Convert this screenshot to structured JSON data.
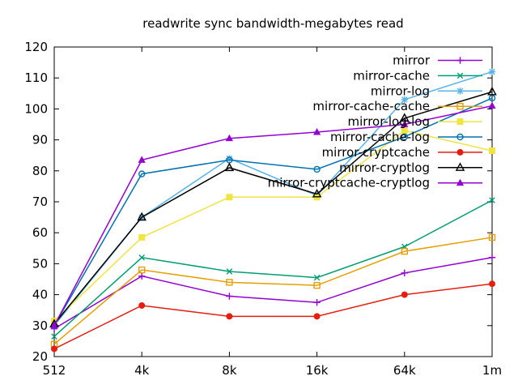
{
  "title": "readwrite sync bandwidth-megabytes read",
  "chart_data": {
    "type": "line",
    "title": "readwrite sync bandwidth-megabytes read",
    "xlabel": "",
    "ylabel": "",
    "categories": [
      "512",
      "4k",
      "8k",
      "16k",
      "64k",
      "1m"
    ],
    "ylim": [
      20,
      120
    ],
    "yticks": [
      20,
      30,
      40,
      50,
      60,
      70,
      80,
      90,
      100,
      110,
      120
    ],
    "grid": false,
    "legend_position": "top-right-inside",
    "series": [
      {
        "name": "mirror",
        "color": "#9400d3",
        "marker": "plus",
        "values": [
          29,
          46,
          39.5,
          37.5,
          47,
          52
        ]
      },
      {
        "name": "mirror-cache",
        "color": "#009e73",
        "marker": "cross",
        "values": [
          26.5,
          52,
          47.5,
          45.5,
          55.5,
          70.5
        ]
      },
      {
        "name": "mirror-log",
        "color": "#56b4e9",
        "marker": "asterisk",
        "values": [
          30,
          65,
          84,
          72,
          103,
          112
        ]
      },
      {
        "name": "mirror-cache-cache",
        "color": "#e69f00",
        "marker": "open-square",
        "values": [
          24,
          48,
          44,
          43,
          54,
          58.5
        ]
      },
      {
        "name": "mirror-log-log",
        "color": "#f0e442",
        "marker": "filled-square",
        "values": [
          31.5,
          58.5,
          71.5,
          71.5,
          93,
          86.5
        ]
      },
      {
        "name": "mirror-cache-log",
        "color": "#0072b2",
        "marker": "open-circle",
        "values": [
          30,
          79,
          83.5,
          80.5,
          91,
          103.5
        ]
      },
      {
        "name": "mirror-cryptcache",
        "color": "#e51e10",
        "marker": "filled-circle",
        "values": [
          22.5,
          36.5,
          33,
          33,
          40,
          43.5
        ]
      },
      {
        "name": "mirror-cryptlog",
        "color": "#000000",
        "marker": "open-triangle",
        "values": [
          30.5,
          65,
          81,
          72.5,
          97,
          105.5
        ]
      },
      {
        "name": "mirror-cryptcache-cryptlog",
        "color": "#9400d3",
        "marker": "filled-triangle",
        "values": [
          30,
          83.5,
          90.5,
          92.5,
          95,
          101
        ]
      }
    ]
  }
}
